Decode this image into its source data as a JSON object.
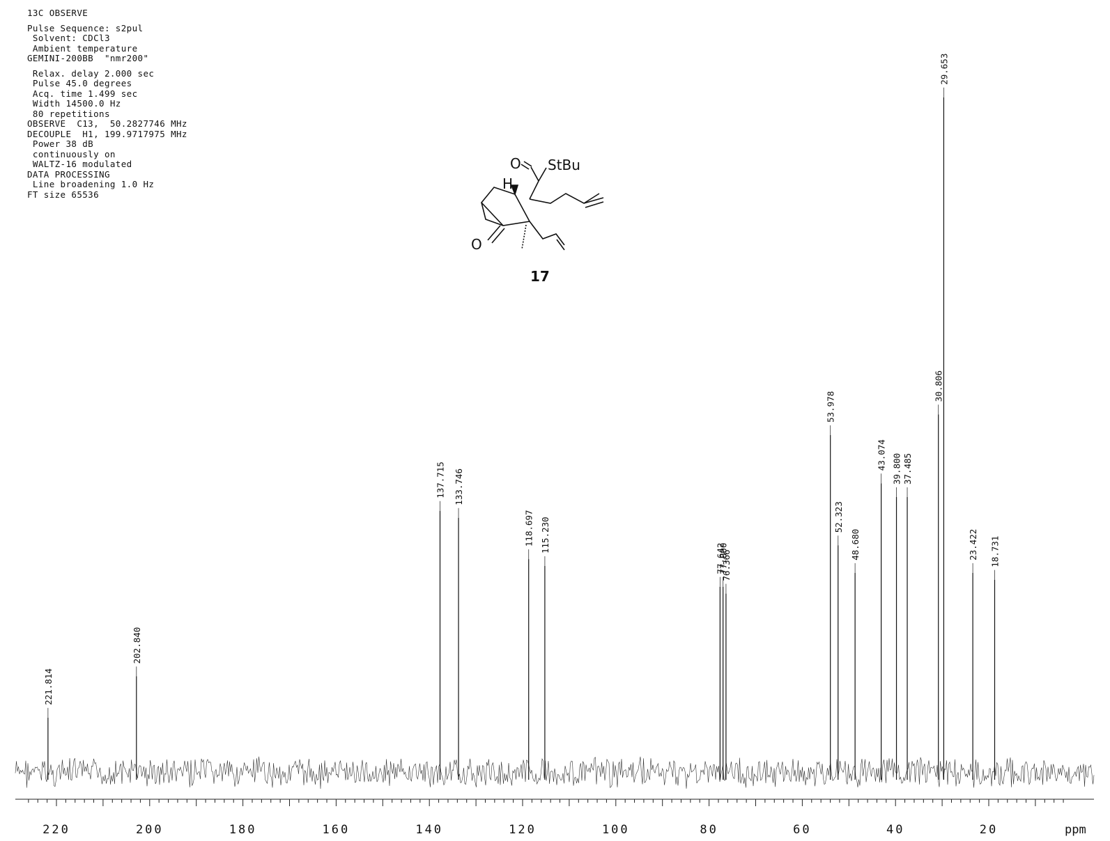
{
  "header": {
    "lines": [
      "13C OBSERVE",
      "",
      "Pulse Sequence: s2pul",
      " Solvent: CDCl3",
      " Ambient temperature",
      "GEMINI-200BB  \"nmr200\"",
      "",
      " Relax. delay 2.000 sec",
      " Pulse 45.0 degrees",
      " Acq. time 1.499 sec",
      " Width 14500.0 Hz",
      " 80 repetitions",
      "OBSERVE  C13,  50.2827746 MHz",
      "DECOUPLE  H1, 199.9717975 MHz",
      " Power 38 dB",
      " continuously on",
      " WALTZ-16 modulated",
      "DATA PROCESSING",
      " Line broadening 1.0 Hz",
      "FT size 65536"
    ]
  },
  "molecule": {
    "label_O1": "O",
    "label_S": "StBu",
    "label_H": "H",
    "label_O2": "O",
    "compound_number": "17"
  },
  "chart_data": {
    "type": "line",
    "title": "",
    "xlabel": "ppm",
    "ylabel": "",
    "x_reversed": true,
    "xlim": [
      226,
      4
    ],
    "ticks": [
      220,
      200,
      180,
      160,
      140,
      120,
      100,
      80,
      60,
      40,
      20
    ],
    "tick_labels": [
      "220",
      "200",
      "180",
      "160",
      "140",
      "120",
      "100",
      "80",
      "60",
      "40",
      "20"
    ],
    "unit_label": "ppm",
    "peaks": [
      {
        "ppm": 221.814,
        "label": "221.814",
        "height": 0.08
      },
      {
        "ppm": 202.84,
        "label": "202.840",
        "height": 0.14
      },
      {
        "ppm": 137.715,
        "label": "137.715",
        "height": 0.38
      },
      {
        "ppm": 133.746,
        "label": "133.746",
        "height": 0.37
      },
      {
        "ppm": 118.697,
        "label": "118.697",
        "height": 0.31
      },
      {
        "ppm": 115.23,
        "label": "115.230",
        "height": 0.3
      },
      {
        "ppm": 77.642,
        "label": "77.642",
        "height": 0.27
      },
      {
        "ppm": 77.0,
        "label": "77.000",
        "height": 0.27
      },
      {
        "ppm": 76.366,
        "label": "76.366",
        "height": 0.26
      },
      {
        "ppm": 53.978,
        "label": "53.978",
        "height": 0.49
      },
      {
        "ppm": 52.323,
        "label": "52.323",
        "height": 0.33
      },
      {
        "ppm": 48.68,
        "label": "48.680",
        "height": 0.29
      },
      {
        "ppm": 43.074,
        "label": "43.074",
        "height": 0.42
      },
      {
        "ppm": 39.8,
        "label": "39.800",
        "height": 0.4
      },
      {
        "ppm": 37.485,
        "label": "37.485",
        "height": 0.4
      },
      {
        "ppm": 30.806,
        "label": "30.806",
        "height": 0.52
      },
      {
        "ppm": 29.653,
        "label": "29.653",
        "height": 0.98
      },
      {
        "ppm": 23.422,
        "label": "23.422",
        "height": 0.29
      },
      {
        "ppm": 18.731,
        "label": "18.731",
        "height": 0.28
      }
    ]
  }
}
